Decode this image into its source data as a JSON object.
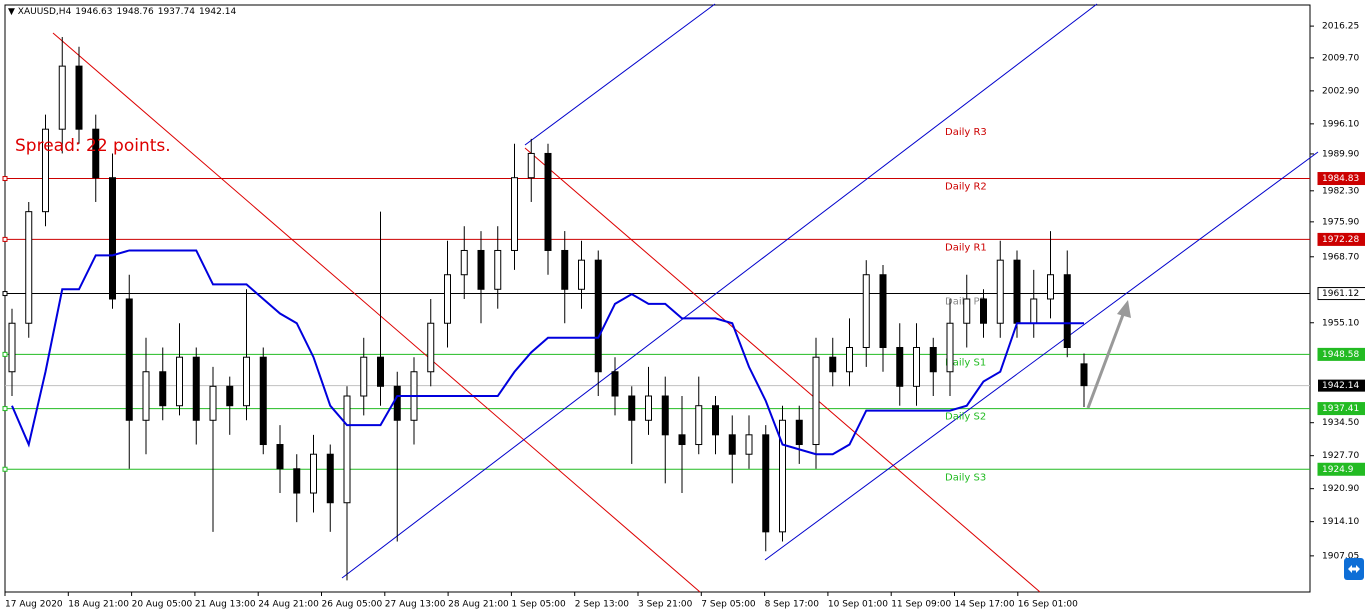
{
  "chart_data": {
    "type": "candlestick",
    "symbol": "XAUUSD,H4",
    "spread": "Spread: 22 points.",
    "ylim": [
      1899.6,
      2020.6
    ],
    "yticks": [
      {
        "value": 2016.25,
        "label": "2016.25"
      },
      {
        "value": 2009.7,
        "label": "2009.70"
      },
      {
        "value": 2002.9,
        "label": "2002.90"
      },
      {
        "value": 1996.1,
        "label": "1996.10"
      },
      {
        "value": 1989.9,
        "label": "1989.90"
      },
      {
        "value": 1982.3,
        "label": "1982.30"
      },
      {
        "value": 1975.9,
        "label": "1975.90"
      },
      {
        "value": 1968.7,
        "label": "1968.70"
      },
      {
        "value": 1955.1,
        "label": "1955.10"
      },
      {
        "value": 1934.5,
        "label": "1934.50"
      },
      {
        "value": 1927.7,
        "label": "1927.70"
      },
      {
        "value": 1920.9,
        "label": "1920.90"
      },
      {
        "value": 1914.1,
        "label": "1914.10"
      },
      {
        "value": 1907.05,
        "label": "1907.05"
      }
    ],
    "x_labels": [
      "17 Aug 2020",
      "18 Aug 21:00",
      "20 Aug 05:00",
      "21 Aug 13:00",
      "24 Aug 21:00",
      "26 Aug 05:00",
      "27 Aug 13:00",
      "28 Aug 21:00",
      "1 Sep 05:00",
      "2 Sep 13:00",
      "3 Sep 21:00",
      "7 Sep 05:00",
      "8 Sep 17:00",
      "10 Sep 01:00",
      "11 Sep 09:00",
      "14 Sep 17:00",
      "16 Sep 01:00"
    ],
    "candles": [
      [
        1945,
        1958,
        1940,
        1955
      ],
      [
        1955,
        1980,
        1952,
        1978
      ],
      [
        1978,
        1998,
        1975,
        1995
      ],
      [
        1995,
        2014,
        1990,
        2008
      ],
      [
        2008,
        2012,
        1992,
        1995
      ],
      [
        1995,
        1998,
        1980,
        1985
      ],
      [
        1985,
        1990,
        1958,
        1960
      ],
      [
        1960,
        1965,
        1925,
        1935
      ],
      [
        1935,
        1952,
        1928,
        1945
      ],
      [
        1945,
        1950,
        1935,
        1938
      ],
      [
        1938,
        1955,
        1936,
        1948
      ],
      [
        1948,
        1950,
        1930,
        1935
      ],
      [
        1935,
        1946,
        1912,
        1942
      ],
      [
        1942,
        1944,
        1932,
        1938
      ],
      [
        1938,
        1962,
        1935,
        1948
      ],
      [
        1948,
        1950,
        1928,
        1930
      ],
      [
        1930,
        1934,
        1920,
        1925
      ],
      [
        1925,
        1928,
        1914,
        1920
      ],
      [
        1920,
        1932,
        1916,
        1928
      ],
      [
        1928,
        1930,
        1912,
        1918
      ],
      [
        1918,
        1942,
        1902,
        1940
      ],
      [
        1940,
        1952,
        1936,
        1948
      ],
      [
        1948,
        1978,
        1938,
        1942
      ],
      [
        1942,
        1945,
        1910,
        1935
      ],
      [
        1935,
        1948,
        1930,
        1945
      ],
      [
        1945,
        1960,
        1942,
        1955
      ],
      [
        1955,
        1972,
        1950,
        1965
      ],
      [
        1965,
        1975,
        1960,
        1970
      ],
      [
        1970,
        1974,
        1955,
        1962
      ],
      [
        1962,
        1975,
        1958,
        1970
      ],
      [
        1970,
        1992,
        1966,
        1985
      ],
      [
        1985,
        1993,
        1980,
        1990
      ],
      [
        1990,
        1992,
        1965,
        1970
      ],
      [
        1970,
        1974,
        1955,
        1962
      ],
      [
        1962,
        1972,
        1958,
        1968
      ],
      [
        1968,
        1970,
        1940,
        1945
      ],
      [
        1945,
        1948,
        1936,
        1940
      ],
      [
        1940,
        1942,
        1926,
        1935
      ],
      [
        1935,
        1946,
        1932,
        1940
      ],
      [
        1940,
        1944,
        1922,
        1932
      ],
      [
        1932,
        1940,
        1920,
        1930
      ],
      [
        1930,
        1944,
        1928,
        1938
      ],
      [
        1938,
        1940,
        1928,
        1932
      ],
      [
        1932,
        1936,
        1922,
        1928
      ],
      [
        1928,
        1936,
        1925,
        1932
      ],
      [
        1932,
        1934,
        1908,
        1912
      ],
      [
        1912,
        1938,
        1910,
        1935
      ],
      [
        1935,
        1938,
        1926,
        1930
      ],
      [
        1930,
        1952,
        1925,
        1948
      ],
      [
        1948,
        1952,
        1942,
        1945
      ],
      [
        1945,
        1956,
        1942,
        1950
      ],
      [
        1950,
        1968,
        1946,
        1965
      ],
      [
        1965,
        1967,
        1945,
        1950
      ],
      [
        1950,
        1955,
        1938,
        1942
      ],
      [
        1942,
        1955,
        1938,
        1950
      ],
      [
        1950,
        1952,
        1940,
        1945
      ],
      [
        1945,
        1960,
        1940,
        1955
      ],
      [
        1955,
        1965,
        1950,
        1960
      ],
      [
        1960,
        1962,
        1952,
        1955
      ],
      [
        1955,
        1972,
        1952,
        1968
      ],
      [
        1968,
        1970,
        1952,
        1955
      ],
      [
        1955,
        1966,
        1952,
        1960
      ],
      [
        1960,
        1974,
        1956,
        1965
      ],
      [
        1965,
        1970,
        1948,
        1950
      ],
      [
        1946.63,
        1948.76,
        1937.74,
        1942.14
      ]
    ],
    "indicator": {
      "color": "#0000dd",
      "values": [
        1938,
        1930,
        1945,
        1962,
        1962,
        1969,
        1969,
        1970,
        1970,
        1970,
        1970,
        1970,
        1963,
        1963,
        1963,
        1960,
        1957,
        1955,
        1948,
        1938,
        1934,
        1934,
        1934,
        1940,
        1940,
        1940,
        1940,
        1940,
        1940,
        1940,
        1945,
        1949,
        1952,
        1952,
        1952,
        1952,
        1959,
        1961,
        1959,
        1959,
        1956,
        1956,
        1956,
        1955,
        1946,
        1939,
        1930,
        1929,
        1928,
        1928,
        1930,
        1937,
        1937,
        1937,
        1937,
        1937,
        1937,
        1938,
        1943,
        1945,
        1955,
        1955,
        1955,
        1955,
        1955
      ]
    },
    "levels": [
      {
        "name": "Daily R3",
        "value": 1996.1,
        "color": "#cc0000",
        "tag": false
      },
      {
        "name": "Daily R2",
        "value": 1984.83,
        "color": "#cc0000",
        "tag": true
      },
      {
        "name": "Daily R1",
        "value": 1972.28,
        "color": "#cc0000",
        "tag": true
      },
      {
        "name": "Daily PP",
        "value": 1961.12,
        "color": "#000000",
        "tag": true
      },
      {
        "name": "Daily S1",
        "value": 1948.58,
        "color": "#22bb22",
        "tag": true
      },
      {
        "name": "Daily S2",
        "value": 1937.41,
        "color": "#22bb22",
        "tag": true
      },
      {
        "name": "Daily S3",
        "value": 1924.9,
        "color": "#22bb22",
        "tag": true
      }
    ]
  }
}
